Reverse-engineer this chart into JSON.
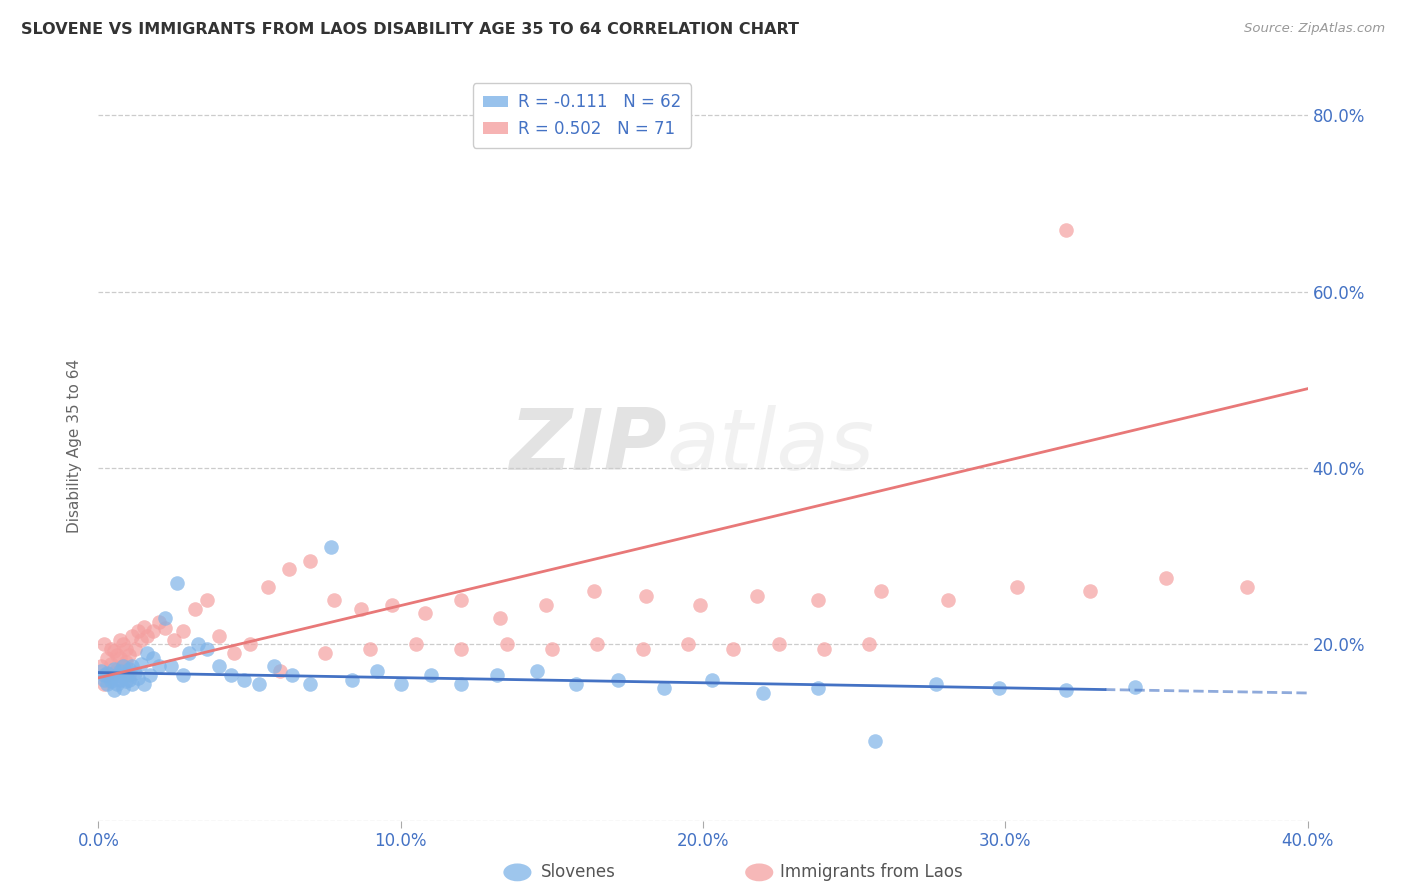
{
  "title": "SLOVENE VS IMMIGRANTS FROM LAOS DISABILITY AGE 35 TO 64 CORRELATION CHART",
  "source": "Source: ZipAtlas.com",
  "ylabel": "Disability Age 35 to 64",
  "xlim": [
    0.0,
    0.4
  ],
  "ylim": [
    0.0,
    0.85
  ],
  "color_slovene": "#7EB3E8",
  "color_laos": "#F4A0A0",
  "line_color_slovene": "#4472C4",
  "line_color_laos": "#E87878",
  "R_slovene": -0.111,
  "N_slovene": 62,
  "R_laos": 0.502,
  "N_laos": 71,
  "watermark_zip": "ZIP",
  "watermark_atlas": "atlas",
  "slovene_x": [
    0.001,
    0.002,
    0.002,
    0.003,
    0.003,
    0.004,
    0.004,
    0.005,
    0.005,
    0.006,
    0.006,
    0.007,
    0.007,
    0.008,
    0.008,
    0.009,
    0.009,
    0.01,
    0.01,
    0.011,
    0.011,
    0.012,
    0.013,
    0.014,
    0.015,
    0.016,
    0.017,
    0.018,
    0.02,
    0.022,
    0.024,
    0.026,
    0.028,
    0.03,
    0.033,
    0.036,
    0.04,
    0.044,
    0.048,
    0.053,
    0.058,
    0.064,
    0.07,
    0.077,
    0.084,
    0.092,
    0.1,
    0.11,
    0.12,
    0.132,
    0.145,
    0.158,
    0.172,
    0.187,
    0.203,
    0.22,
    0.238,
    0.257,
    0.277,
    0.298,
    0.32,
    0.343
  ],
  "slovene_y": [
    0.17,
    0.165,
    0.16,
    0.168,
    0.155,
    0.162,
    0.158,
    0.172,
    0.148,
    0.165,
    0.155,
    0.17,
    0.16,
    0.175,
    0.15,
    0.165,
    0.158,
    0.172,
    0.16,
    0.175,
    0.155,
    0.168,
    0.162,
    0.178,
    0.155,
    0.19,
    0.165,
    0.185,
    0.175,
    0.23,
    0.175,
    0.27,
    0.165,
    0.19,
    0.2,
    0.195,
    0.175,
    0.165,
    0.16,
    0.155,
    0.175,
    0.165,
    0.155,
    0.31,
    0.16,
    0.17,
    0.155,
    0.165,
    0.155,
    0.165,
    0.17,
    0.155,
    0.16,
    0.15,
    0.16,
    0.145,
    0.15,
    0.09,
    0.155,
    0.15,
    0.148,
    0.152
  ],
  "laos_x": [
    0.001,
    0.002,
    0.002,
    0.003,
    0.003,
    0.004,
    0.004,
    0.005,
    0.005,
    0.006,
    0.006,
    0.007,
    0.007,
    0.008,
    0.008,
    0.009,
    0.009,
    0.01,
    0.01,
    0.011,
    0.012,
    0.013,
    0.014,
    0.015,
    0.016,
    0.018,
    0.02,
    0.022,
    0.025,
    0.028,
    0.032,
    0.036,
    0.04,
    0.045,
    0.05,
    0.056,
    0.063,
    0.07,
    0.078,
    0.087,
    0.097,
    0.108,
    0.12,
    0.133,
    0.148,
    0.164,
    0.181,
    0.199,
    0.218,
    0.238,
    0.259,
    0.281,
    0.304,
    0.328,
    0.353,
    0.38,
    0.06,
    0.075,
    0.09,
    0.105,
    0.12,
    0.135,
    0.15,
    0.165,
    0.18,
    0.195,
    0.21,
    0.225,
    0.24,
    0.255,
    0.32
  ],
  "laos_y": [
    0.175,
    0.155,
    0.2,
    0.185,
    0.165,
    0.195,
    0.178,
    0.168,
    0.192,
    0.188,
    0.172,
    0.205,
    0.185,
    0.2,
    0.175,
    0.195,
    0.18,
    0.188,
    0.165,
    0.21,
    0.195,
    0.215,
    0.205,
    0.22,
    0.21,
    0.215,
    0.225,
    0.218,
    0.205,
    0.215,
    0.24,
    0.25,
    0.21,
    0.19,
    0.2,
    0.265,
    0.285,
    0.295,
    0.25,
    0.24,
    0.245,
    0.235,
    0.25,
    0.23,
    0.245,
    0.26,
    0.255,
    0.245,
    0.255,
    0.25,
    0.26,
    0.25,
    0.265,
    0.26,
    0.275,
    0.265,
    0.17,
    0.19,
    0.195,
    0.2,
    0.195,
    0.2,
    0.195,
    0.2,
    0.195,
    0.2,
    0.195,
    0.2,
    0.195,
    0.2,
    0.67
  ],
  "slope_s": -0.058,
  "intercept_s": 0.168,
  "slope_l": 0.82,
  "intercept_l": 0.162
}
